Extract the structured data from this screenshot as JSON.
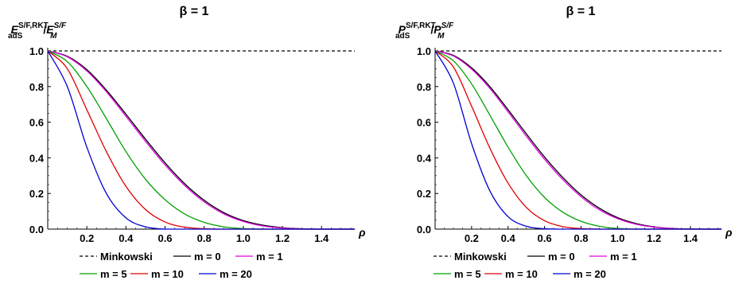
{
  "chart_data": [
    {
      "type": "line",
      "title": "β = 1",
      "ylabel": {
        "main": "E",
        "sup1": "S/F,RKT",
        "sub1": "adS",
        "sep": "/",
        "main2": "E",
        "sup2": "S/F",
        "sub2": "M"
      },
      "xlabel": "ρ",
      "xlim": [
        0,
        1.57
      ],
      "ylim": [
        0,
        1.0
      ],
      "xticks": [
        "0.2",
        "0.4",
        "0.6",
        "0.8",
        "1.0",
        "1.2",
        "1.4"
      ],
      "xtick_values": [
        0.2,
        0.4,
        0.6,
        0.8,
        1.0,
        1.2,
        1.4
      ],
      "yticks": [
        "0.0",
        "0.2",
        "0.4",
        "0.6",
        "0.8",
        "1.0"
      ],
      "ytick_values": [
        0.0,
        0.2,
        0.4,
        0.6,
        0.8,
        1.0
      ],
      "x": [
        0,
        0.1,
        0.2,
        0.3,
        0.4,
        0.5,
        0.6,
        0.7,
        0.8,
        0.9,
        1.0,
        1.1,
        1.2,
        1.3,
        1.4,
        1.5,
        1.57
      ],
      "series": [
        {
          "name": "Minkowski",
          "color": "#000000",
          "dash": true,
          "values": [
            1,
            1,
            1,
            1,
            1,
            1,
            1,
            1,
            1,
            1,
            1,
            1,
            1,
            1,
            1,
            1,
            1
          ]
        },
        {
          "name": "m = 0",
          "color": "#000000",
          "dash": false,
          "values": [
            1.0,
            0.97,
            0.895,
            0.78,
            0.645,
            0.505,
            0.372,
            0.255,
            0.162,
            0.093,
            0.048,
            0.022,
            0.008,
            0.002,
            0.0,
            0.0,
            0.0
          ]
        },
        {
          "name": "m = 1",
          "color": "#e000e0",
          "dash": false,
          "values": [
            1.0,
            0.967,
            0.888,
            0.771,
            0.633,
            0.493,
            0.36,
            0.245,
            0.153,
            0.086,
            0.043,
            0.018,
            0.006,
            0.001,
            0.0,
            0.0,
            0.0
          ]
        },
        {
          "name": "m = 5",
          "color": "#00a000",
          "dash": false,
          "values": [
            1.0,
            0.94,
            0.8,
            0.62,
            0.435,
            0.28,
            0.165,
            0.085,
            0.038,
            0.013,
            0.003,
            0.0,
            0.0,
            0.0,
            0.0,
            0.0,
            0.0
          ]
        },
        {
          "name": "m = 10",
          "color": "#e00000",
          "dash": false,
          "values": [
            1.0,
            0.9,
            0.67,
            0.435,
            0.24,
            0.11,
            0.04,
            0.011,
            0.002,
            0.0,
            0.0,
            0.0,
            0.0,
            0.0,
            0.0,
            0.0,
            0.0
          ]
        },
        {
          "name": "m = 20",
          "color": "#0000d0",
          "dash": false,
          "values": [
            1.0,
            0.8,
            0.46,
            0.2,
            0.063,
            0.013,
            0.0,
            0.0,
            0.0,
            0.0,
            0.0,
            0.0,
            0.0,
            0.0,
            0.0,
            0.0,
            0.0
          ]
        }
      ]
    },
    {
      "type": "line",
      "title": "β = 1",
      "ylabel": {
        "main": "P",
        "sup1": "S/F,RKT",
        "sub1": "adS",
        "sep": "/",
        "main2": "P",
        "sup2": "S/F",
        "sub2": "M"
      },
      "xlabel": "ρ",
      "xlim": [
        0,
        1.57
      ],
      "ylim": [
        0,
        1.0
      ],
      "xticks": [
        "0.2",
        "0.4",
        "0.6",
        "0.8",
        "1.0",
        "1.2",
        "1.4"
      ],
      "xtick_values": [
        0.2,
        0.4,
        0.6,
        0.8,
        1.0,
        1.2,
        1.4
      ],
      "yticks": [
        "0.0",
        "0.2",
        "0.4",
        "0.6",
        "0.8",
        "1.0"
      ],
      "ytick_values": [
        0.0,
        0.2,
        0.4,
        0.6,
        0.8,
        1.0
      ],
      "x": [
        0,
        0.1,
        0.2,
        0.3,
        0.4,
        0.5,
        0.6,
        0.7,
        0.8,
        0.9,
        1.0,
        1.1,
        1.2,
        1.3,
        1.4,
        1.5,
        1.57
      ],
      "series": [
        {
          "name": "Minkowski",
          "color": "#000000",
          "dash": true,
          "values": [
            1,
            1,
            1,
            1,
            1,
            1,
            1,
            1,
            1,
            1,
            1,
            1,
            1,
            1,
            1,
            1,
            1
          ]
        },
        {
          "name": "m = 0",
          "color": "#000000",
          "dash": false,
          "values": [
            1.0,
            0.975,
            0.905,
            0.8,
            0.67,
            0.535,
            0.405,
            0.29,
            0.192,
            0.118,
            0.065,
            0.032,
            0.013,
            0.004,
            0.001,
            0.0,
            0.0
          ]
        },
        {
          "name": "m = 1",
          "color": "#e000e0",
          "dash": false,
          "values": [
            1.0,
            0.972,
            0.898,
            0.79,
            0.658,
            0.522,
            0.392,
            0.278,
            0.182,
            0.109,
            0.059,
            0.028,
            0.011,
            0.003,
            0.0,
            0.0,
            0.0
          ]
        },
        {
          "name": "m = 5",
          "color": "#00a000",
          "dash": false,
          "values": [
            1.0,
            0.945,
            0.815,
            0.64,
            0.46,
            0.3,
            0.178,
            0.095,
            0.044,
            0.016,
            0.004,
            0.0,
            0.0,
            0.0,
            0.0,
            0.0,
            0.0
          ]
        },
        {
          "name": "m = 10",
          "color": "#e00000",
          "dash": false,
          "values": [
            1.0,
            0.91,
            0.69,
            0.455,
            0.258,
            0.122,
            0.047,
            0.014,
            0.003,
            0.0,
            0.0,
            0.0,
            0.0,
            0.0,
            0.0,
            0.0,
            0.0
          ]
        },
        {
          "name": "m = 20",
          "color": "#0000d0",
          "dash": false,
          "values": [
            1.0,
            0.82,
            0.48,
            0.215,
            0.07,
            0.016,
            0.002,
            0.0,
            0.0,
            0.0,
            0.0,
            0.0,
            0.0,
            0.0,
            0.0,
            0.0,
            0.0
          ]
        }
      ]
    }
  ]
}
